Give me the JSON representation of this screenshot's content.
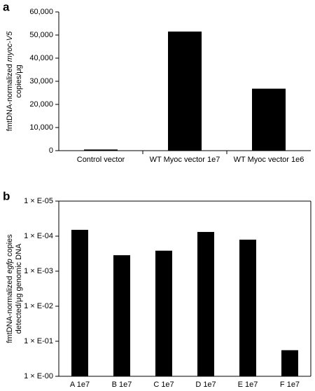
{
  "chart_data": [
    {
      "type": "bar",
      "panel_label": "a",
      "ylabel": [
        [
          {
            "text": "fmtDNA-normalized "
          },
          {
            "text": "myoc-V5",
            "italic": true
          }
        ],
        [
          {
            "text": "copies/μg"
          }
        ]
      ],
      "categories": [
        "Control vector",
        "WT Myoc vector 1e7",
        "WT Myoc vector 1e6"
      ],
      "values": [
        500,
        51500,
        26800
      ],
      "color": "#000000",
      "ylim": [
        0,
        60000
      ],
      "yticks": [
        0,
        {
          "value": 10000,
          "label": "10,000"
        },
        {
          "value": 20000,
          "label": "20,000"
        },
        {
          "value": 30000,
          "label": "30,000"
        },
        {
          "value": 40000,
          "label": "40,000"
        },
        {
          "value": 50000,
          "label": "50,000"
        },
        {
          "value": 60000,
          "label": "60,000"
        }
      ],
      "frame": false
    },
    {
      "type": "bar",
      "panel_label": "b",
      "ylabel": [
        [
          {
            "text": "fmtDNA-normalized "
          },
          {
            "text": "egfp",
            "italic": true
          },
          {
            "text": " copies"
          }
        ],
        [
          {
            "text": "detected/μg genomic DNA"
          }
        ]
      ],
      "categories": [
        "A 1e7",
        "B 1e7",
        "C 1e7",
        "D 1e7",
        "E 1e7",
        "F 1e7"
      ],
      "values": [
        6.6e-05,
        0.00035,
        0.00026,
        7.6e-05,
        0.000126,
        0.18
      ],
      "color": "#000000",
      "ylim": [
        1,
        1e-05
      ],
      "log_scale": true,
      "yticks": [
        {
          "value": 1e-05,
          "label": "1 × E-05"
        },
        {
          "value": 0.0001,
          "label": "1 × E-04"
        },
        {
          "value": 0.001,
          "label": "1 × E-03"
        },
        {
          "value": 0.01,
          "label": "1 × E-02"
        },
        {
          "value": 0.1,
          "label": "1 × E-01"
        },
        {
          "value": 1,
          "label": "1 × E-00"
        }
      ],
      "frame": true
    }
  ]
}
